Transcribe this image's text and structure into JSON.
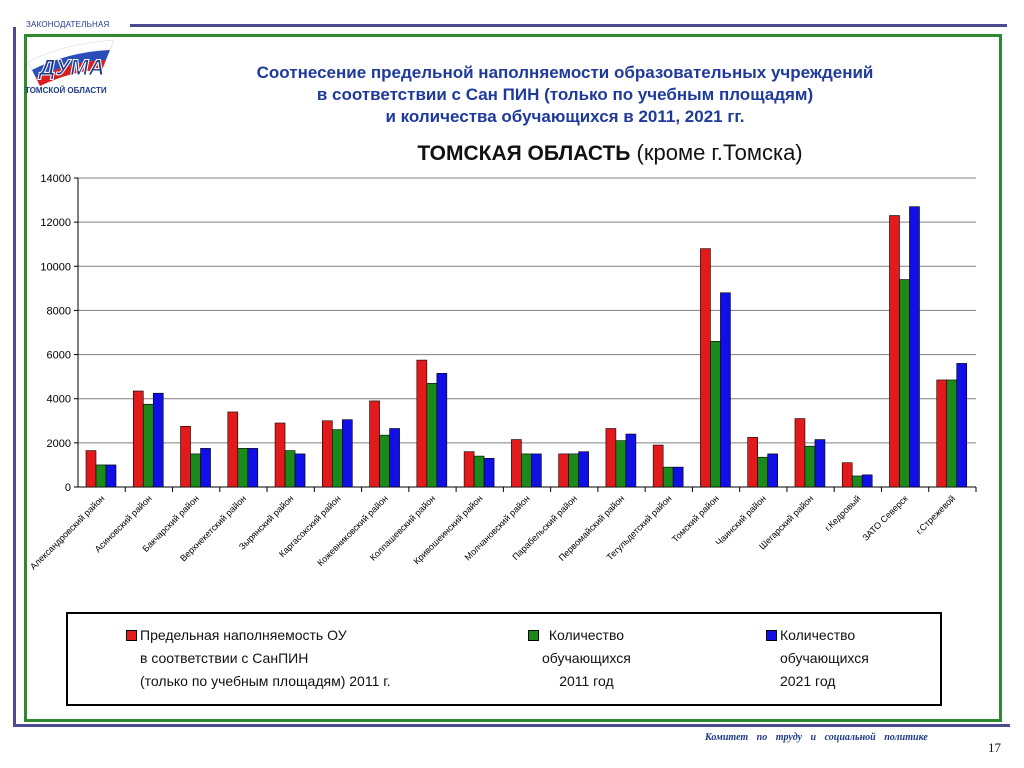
{
  "logo": {
    "top_text": "ЗАКОНОДАТЕЛЬНАЯ",
    "main_text": "ДУМА",
    "bottom_text": "ТОМСКОЙ ОБЛАСТИ"
  },
  "header": {
    "title_line1": "Соотнесение предельной наполняемости образовательных учреждений",
    "title_line2": "в соответствии с Сан ПИН (только по учебным площадям)",
    "title_line3": "и количества обучающихся в 2011, 2021 гг.",
    "subtitle_bold": "ТОМСКАЯ ОБЛАСТЬ",
    "subtitle_rest": "(кроме г.Томска)"
  },
  "colors": {
    "series1": "#e31a1c",
    "series2": "#1a8a1a",
    "series3": "#1010e6",
    "title": "#1e3a9a"
  },
  "chart_data": {
    "type": "bar",
    "ylim": [
      0,
      14000
    ],
    "yticks": [
      "0",
      "2000",
      "4000",
      "6000",
      "8000",
      "10000",
      "12000",
      "14000"
    ],
    "grid": true,
    "categories": [
      "Александровский район",
      "Асиновский район",
      "Бакчарский район",
      "Верхнекетский район",
      "Зырянский район",
      "Каргасокский район",
      "Кожевниковский район",
      "Колпашевский район",
      "Кривошеинский район",
      "Молчановский район",
      "Парабельский район",
      "Первомайский район",
      "Тегульдетский район",
      "Томский район",
      "Чаинский район",
      "Шегарский район",
      "г.Кедровый",
      "ЗАТО Северск",
      "г.Стрежевой"
    ],
    "series": [
      {
        "name": "Предельная наполняемость ОУ в соответствии с СанПИН (только по учебным площадям) 2011 г.",
        "values": [
          1650,
          4350,
          2750,
          3400,
          2900,
          3000,
          3900,
          5750,
          1600,
          2150,
          1500,
          2650,
          1900,
          10800,
          2250,
          3100,
          1100,
          12300,
          4850
        ]
      },
      {
        "name": "Количество обучающихся 2011 год",
        "values": [
          1000,
          3750,
          1500,
          1750,
          1650,
          2600,
          2350,
          4700,
          1400,
          1500,
          1500,
          2100,
          900,
          6600,
          1350,
          1850,
          500,
          9400,
          4850
        ]
      },
      {
        "name": "Количество обучающихся 2021 год",
        "values": [
          1000,
          4250,
          1750,
          1750,
          1500,
          3050,
          2650,
          5150,
          1300,
          1500,
          1600,
          2400,
          900,
          8800,
          1500,
          2150,
          550,
          12700,
          5600
        ]
      }
    ]
  },
  "legend": {
    "items": [
      {
        "lines": [
          "Предельная наполняемость ОУ",
          "в соответствии с СанПИН",
          "(только по учебным площадям) 2011 г."
        ]
      },
      {
        "lines": [
          "Количество",
          "обучающихся",
          "2011 год"
        ]
      },
      {
        "lines": [
          "Количество",
          "обучающихся",
          "2021 год"
        ]
      }
    ]
  },
  "footer": {
    "text": "Комитет по труду и социальной политике",
    "page": "17"
  }
}
